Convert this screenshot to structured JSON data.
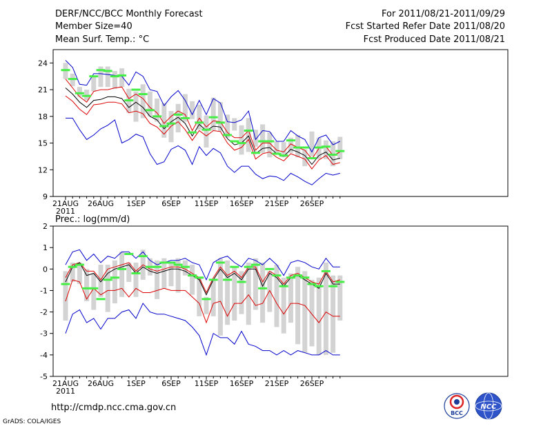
{
  "header": {
    "title": "DERF/NCC/BCC Monthly Forecast",
    "member_size": "Member Size=40",
    "period": "For 2011/08/21-2011/09/29",
    "start_date": "Fcst Started Refer Date 2011/08/20",
    "produced_date": "Fcst Produced Date 2011/08/21"
  },
  "footer": {
    "url": "http://cmdp.ncc.cma.gov.cn",
    "credit": "GrADS: COLA/IGES",
    "logo_left": "BCC",
    "logo_right": "NCC"
  },
  "colors": {
    "ensemble_box": "#d3d3d3",
    "ensemble_mean": "#44ee44",
    "spread_outer": "#0000cc",
    "spread_inner": "#dd0000",
    "median": "#000000"
  },
  "chart_data": [
    {
      "type": "box-timeseries",
      "title": "Mean Surf. Temp.: °C",
      "x_ticks": [
        "21AUG",
        "26AUG",
        "1SEP",
        "6SEP",
        "11SEP",
        "16SEP",
        "21SEP",
        "26SEP"
      ],
      "x_year": "2011",
      "n_days": 40,
      "ylim": [
        9,
        25.5
      ],
      "yticks": [
        9,
        12,
        15,
        18,
        21,
        24
      ],
      "box_low": [
        22.2,
        21.4,
        20.2,
        19.8,
        20.8,
        21.3,
        21.3,
        21.1,
        21.3,
        18.4,
        17.4,
        17.8,
        18.0,
        17.4,
        15.6,
        15.1,
        16.2,
        17.4,
        17.7,
        16.5,
        14.5,
        16.4,
        16.3,
        15.6,
        16.4,
        13.7,
        14.0,
        14.6,
        13.9,
        13.4,
        13.7,
        13.4,
        13.9,
        13.4,
        12.4,
        13.5,
        13.2,
        13.2,
        12.4,
        13.2
      ],
      "box_high": [
        24.0,
        22.8,
        21.3,
        21.0,
        22.5,
        23.6,
        23.6,
        23.1,
        23.4,
        21.1,
        20.8,
        21.6,
        20.8,
        20.0,
        19.5,
        18.6,
        19.4,
        20.5,
        19.7,
        19.3,
        18.1,
        20.1,
        19.6,
        18.2,
        17.8,
        17.0,
        17.8,
        16.5,
        17.1,
        16.2,
        15.2,
        15.1,
        15.6,
        15.9,
        14.3,
        16.3,
        15.6,
        15.3,
        15.2,
        15.7
      ],
      "mean": [
        23.2,
        22.2,
        20.6,
        20.3,
        22.5,
        23.2,
        23.1,
        22.5,
        22.6,
        19.8,
        21.0,
        20.5,
        18.7,
        18.0,
        16.9,
        17.2,
        18.2,
        17.8,
        16.2,
        17.3,
        16.5,
        17.9,
        17.3,
        15.9,
        15.2,
        15.0,
        16.4,
        13.9,
        15.2,
        15.2,
        13.8,
        13.6,
        15.3,
        14.5,
        14.5,
        13.3,
        14.5,
        14.6,
        13.7,
        14.1
      ],
      "outer_high": [
        24.3,
        23.5,
        21.6,
        21.5,
        22.8,
        22.8,
        22.7,
        22.6,
        22.5,
        21.5,
        23.0,
        22.5,
        21.0,
        20.8,
        19.2,
        20.2,
        20.9,
        19.8,
        18.2,
        19.8,
        18.2,
        20.0,
        19.5,
        17.4,
        17.3,
        17.6,
        18.6,
        15.4,
        16.4,
        16.3,
        15.2,
        15.2,
        16.4,
        15.8,
        15.4,
        14.0,
        15.6,
        15.9,
        14.8,
        15.2
      ],
      "red_high": [
        22.2,
        21.2,
        20.2,
        19.6,
        20.8,
        21.0,
        21.0,
        21.2,
        21.3,
        20.0,
        20.5,
        20.0,
        19.0,
        18.4,
        17.2,
        18.0,
        18.6,
        18.2,
        16.4,
        17.8,
        16.8,
        17.5,
        17.4,
        16.2,
        15.6,
        15.6,
        16.4,
        14.2,
        15.0,
        15.0,
        14.2,
        14.0,
        14.9,
        14.5,
        14.2,
        13.2,
        14.4,
        14.6,
        13.6,
        14.0
      ],
      "median": [
        21.2,
        20.5,
        19.6,
        19.0,
        19.8,
        19.9,
        20.2,
        20.2,
        20.0,
        19.0,
        19.6,
        19.0,
        18.0,
        17.6,
        16.6,
        17.4,
        17.9,
        17.2,
        15.8,
        17.1,
        16.4,
        16.9,
        16.8,
        15.5,
        14.8,
        15.0,
        15.8,
        13.8,
        14.4,
        14.5,
        13.8,
        13.5,
        14.3,
        14.0,
        13.6,
        12.6,
        13.6,
        14.0,
        13.1,
        13.3
      ],
      "red_low": [
        20.3,
        19.7,
        18.8,
        18.2,
        19.3,
        19.4,
        19.6,
        19.6,
        19.4,
        18.4,
        18.6,
        18.3,
        17.2,
        16.8,
        16.0,
        16.9,
        17.4,
        16.5,
        15.3,
        16.4,
        15.8,
        16.4,
        16.3,
        15.0,
        14.2,
        14.5,
        15.4,
        13.2,
        13.8,
        14.0,
        13.4,
        13.0,
        13.8,
        13.5,
        13.2,
        12.1,
        13.1,
        13.6,
        12.6,
        12.8
      ],
      "outer_low": [
        17.8,
        17.8,
        16.5,
        15.4,
        15.9,
        16.6,
        17.0,
        17.6,
        15.0,
        15.4,
        16.0,
        15.7,
        13.8,
        12.6,
        12.9,
        14.3,
        14.7,
        14.2,
        12.6,
        14.6,
        13.6,
        14.4,
        13.9,
        12.4,
        11.7,
        12.4,
        12.4,
        11.5,
        11.0,
        11.3,
        11.2,
        10.8,
        11.6,
        11.2,
        10.7,
        10.3,
        11.0,
        11.6,
        11.4,
        11.6
      ]
    },
    {
      "type": "box-timeseries",
      "title": "Prec.: log(mm/d)",
      "x_ticks": [
        "21AUG",
        "26AUG",
        "1SEP",
        "6SEP",
        "11SEP",
        "16SEP",
        "21SEP",
        "26SEP"
      ],
      "x_year": "2011",
      "n_days": 40,
      "ylim": [
        -5,
        2
      ],
      "yticks": [
        -5,
        -4,
        -3,
        -2,
        -1,
        0,
        1,
        2
      ],
      "box_low": [
        -2.4,
        -0.6,
        -0.7,
        -1.5,
        -1.9,
        -1.3,
        -2.0,
        -1.6,
        -1.3,
        -0.6,
        -1.3,
        -0.5,
        -0.3,
        -1.4,
        -0.9,
        -0.8,
        -1.1,
        -0.3,
        -1.2,
        -2.2,
        -2.1,
        -2.2,
        -3.1,
        -2.6,
        -2.4,
        -2.1,
        -2.6,
        -1.9,
        -2.5,
        -2.0,
        -2.7,
        -3.0,
        -2.5,
        -3.5,
        -3.9,
        -3.6,
        -4.0,
        -4.0,
        -3.9,
        -2.4
      ],
      "box_high": [
        -0.1,
        0.3,
        0.3,
        0.0,
        -0.2,
        0.2,
        0.2,
        0.4,
        0.8,
        0.3,
        0.3,
        0.9,
        0.5,
        0.4,
        0.5,
        0.3,
        0.5,
        0.4,
        0.2,
        -0.4,
        -1.3,
        -0.5,
        0.5,
        0.4,
        0.1,
        -0.1,
        0.3,
        0.5,
        0.3,
        -0.1,
        0.2,
        -0.4,
        -0.2,
        0.1,
        -0.1,
        -0.5,
        -0.4,
        0.3,
        -0.3,
        -0.3
      ],
      "mean": [
        -0.7,
        0.1,
        0.2,
        -0.9,
        -0.9,
        -1.4,
        -0.5,
        -0.4,
        0.0,
        0.7,
        -0.2,
        0.6,
        0.1,
        0.1,
        0.3,
        0.3,
        0.2,
        0.1,
        -0.3,
        -0.4,
        -1.4,
        -0.5,
        0.3,
        -0.5,
        0.1,
        -0.6,
        0.1,
        0.2,
        -0.9,
        0.0,
        -0.3,
        -0.8,
        -0.4,
        -0.3,
        -0.4,
        -0.7,
        -0.8,
        -0.1,
        -0.8,
        -0.6
      ],
      "outer_high": [
        0.2,
        0.8,
        0.9,
        0.4,
        0.7,
        0.3,
        0.6,
        0.5,
        0.8,
        0.8,
        0.5,
        0.8,
        0.4,
        0.2,
        0.3,
        0.4,
        0.4,
        0.5,
        0.3,
        0.2,
        -0.5,
        0.3,
        0.5,
        0.6,
        0.3,
        0.1,
        0.5,
        0.4,
        0.2,
        0.5,
        0.2,
        -0.3,
        0.3,
        0.4,
        0.3,
        0.1,
        0.0,
        0.5,
        0.1,
        0.1
      ],
      "red_high": [
        -0.4,
        0.2,
        0.3,
        -0.1,
        -0.1,
        -0.5,
        0.0,
        0.1,
        0.2,
        0.3,
        -0.1,
        0.2,
        0.0,
        -0.1,
        0.0,
        0.1,
        0.1,
        0.0,
        -0.2,
        -0.4,
        -1.1,
        -0.4,
        0.1,
        -0.3,
        -0.1,
        -0.4,
        0.1,
        0.1,
        -0.6,
        -0.1,
        -0.3,
        -0.7,
        -0.3,
        -0.2,
        -0.4,
        -0.6,
        -0.7,
        -0.1,
        -0.6,
        -0.5
      ],
      "median": [
        -0.6,
        0.1,
        0.3,
        -0.3,
        -0.2,
        -0.6,
        -0.2,
        0.0,
        0.1,
        0.2,
        -0.2,
        0.1,
        -0.1,
        -0.2,
        -0.1,
        0.0,
        0.0,
        -0.1,
        -0.3,
        -0.5,
        -1.2,
        -0.5,
        0.0,
        -0.4,
        -0.2,
        -0.5,
        0.0,
        0.0,
        -0.8,
        -0.2,
        -0.4,
        -0.8,
        -0.4,
        -0.3,
        -0.5,
        -0.7,
        -0.9,
        -0.2,
        -0.7,
        -0.7
      ],
      "red_low": [
        -1.5,
        -0.5,
        -0.6,
        -1.4,
        -0.9,
        -1.2,
        -1.0,
        -1.0,
        -0.9,
        -1.3,
        -0.9,
        -1.1,
        -1.1,
        -1.0,
        -0.9,
        -1.0,
        -1.0,
        -1.0,
        -1.3,
        -1.6,
        -2.5,
        -1.6,
        -1.5,
        -2.2,
        -1.6,
        -1.6,
        -1.2,
        -1.7,
        -1.6,
        -1.0,
        -1.6,
        -2.1,
        -1.6,
        -1.6,
        -1.7,
        -2.1,
        -2.5,
        -2.0,
        -2.2,
        -2.2
      ],
      "outer_low": [
        -3.0,
        -2.1,
        -1.9,
        -2.5,
        -2.3,
        -2.8,
        -2.3,
        -2.3,
        -2.0,
        -1.9,
        -2.3,
        -1.6,
        -2.0,
        -2.1,
        -2.1,
        -2.2,
        -2.3,
        -2.4,
        -2.7,
        -3.1,
        -4.0,
        -3.0,
        -3.2,
        -3.2,
        -3.5,
        -2.9,
        -3.5,
        -3.6,
        -3.8,
        -3.8,
        -4.0,
        -3.8,
        -4.0,
        -3.8,
        -3.9,
        -4.0,
        -4.0,
        -3.8,
        -4.0,
        -4.0
      ]
    }
  ]
}
